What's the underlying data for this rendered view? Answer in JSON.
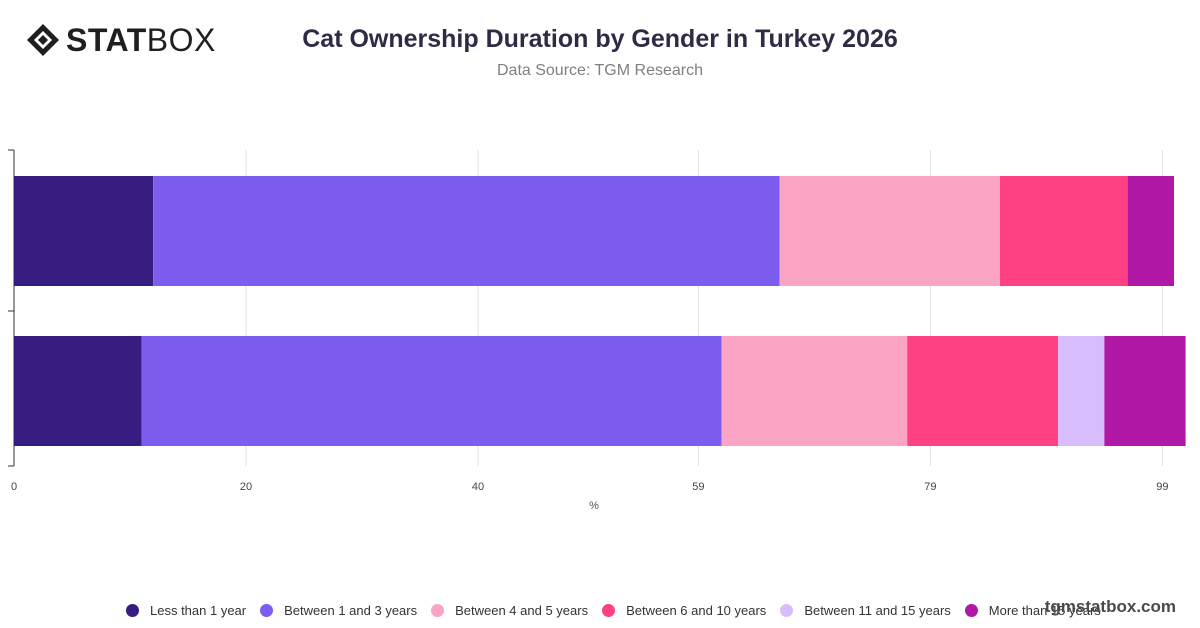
{
  "brand": {
    "logo_bold": "STAT",
    "logo_light": "BOX",
    "watermark": "tgmstatbox.com"
  },
  "header": {
    "title": "Cat Ownership Duration by Gender in Turkey 2026",
    "subtitle": "Data Source: TGM Research"
  },
  "chart_data": {
    "type": "bar",
    "orientation": "horizontal",
    "stacked": true,
    "title": "Cat Ownership Duration by Gender in Turkey 2026",
    "subtitle": "Data Source: TGM Research",
    "xlabel": "%",
    "ylabel": "",
    "xlim": [
      0,
      100
    ],
    "x_ticks": [
      0,
      20,
      40,
      59,
      79,
      99
    ],
    "grid": true,
    "legend": "bottom",
    "categories": [
      "",
      ""
    ],
    "series": [
      {
        "name": "Less than 1 year",
        "color": "#371c82",
        "values": [
          12,
          11
        ]
      },
      {
        "name": "Between 1 and 3 years",
        "color": "#7d5cf0",
        "values": [
          54,
          50
        ]
      },
      {
        "name": "Between 4 and 5 years",
        "color": "#fba4c5",
        "values": [
          19,
          16
        ]
      },
      {
        "name": "Between 6 and 10 years",
        "color": "#ff4084",
        "values": [
          11,
          13
        ]
      },
      {
        "name": "Between 11 and 15 years",
        "color": "#d7bdfb",
        "values": [
          0,
          4
        ]
      },
      {
        "name": "More than 15 years",
        "color": "#b118a5",
        "values": [
          4,
          7
        ]
      }
    ]
  }
}
